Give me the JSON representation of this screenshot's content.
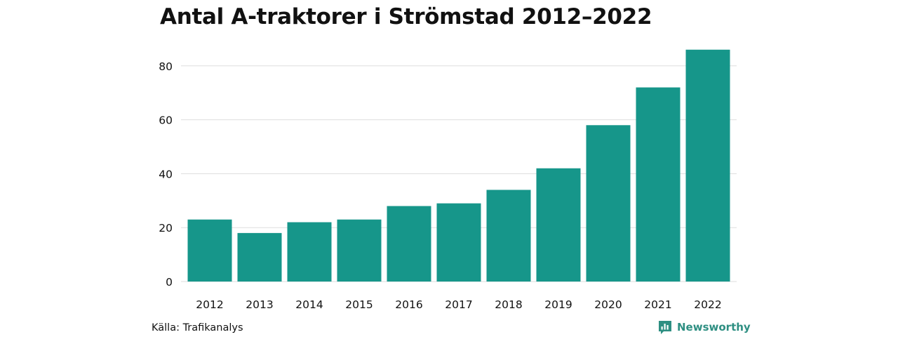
{
  "title": "Antal A-traktorer i Strömstad 2012–2022",
  "source": "Källa: Trafikanalys",
  "brand": {
    "name": "Newsworthy",
    "icon": "newsworthy-logo-icon",
    "color": "#2e8f82"
  },
  "colors": {
    "bar": "#16968a",
    "grid": "#dddddd",
    "text": "#111111"
  },
  "chart_data": {
    "type": "bar",
    "title": "Antal A-traktorer i Strömstad 2012–2022",
    "xlabel": "",
    "ylabel": "",
    "categories": [
      "2012",
      "2013",
      "2014",
      "2015",
      "2016",
      "2017",
      "2018",
      "2019",
      "2020",
      "2021",
      "2022"
    ],
    "values": [
      23,
      18,
      22,
      23,
      28,
      29,
      34,
      42,
      58,
      72,
      86
    ],
    "ylim": [
      0,
      86
    ],
    "yticks": [
      0,
      20,
      40,
      60,
      80
    ],
    "grid": true,
    "legend": "none"
  }
}
